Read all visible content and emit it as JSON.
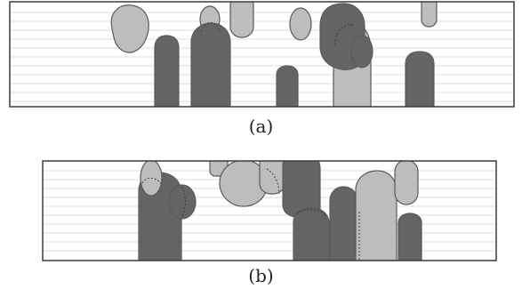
{
  "captions": {
    "a": "(a)",
    "b": "(b)"
  },
  "colors": {
    "dark": "#646464",
    "light": "#bdbdbd",
    "outline": "#5a5a5a",
    "stripe": "#dcdcdc",
    "frame": "#3a3a3a"
  }
}
